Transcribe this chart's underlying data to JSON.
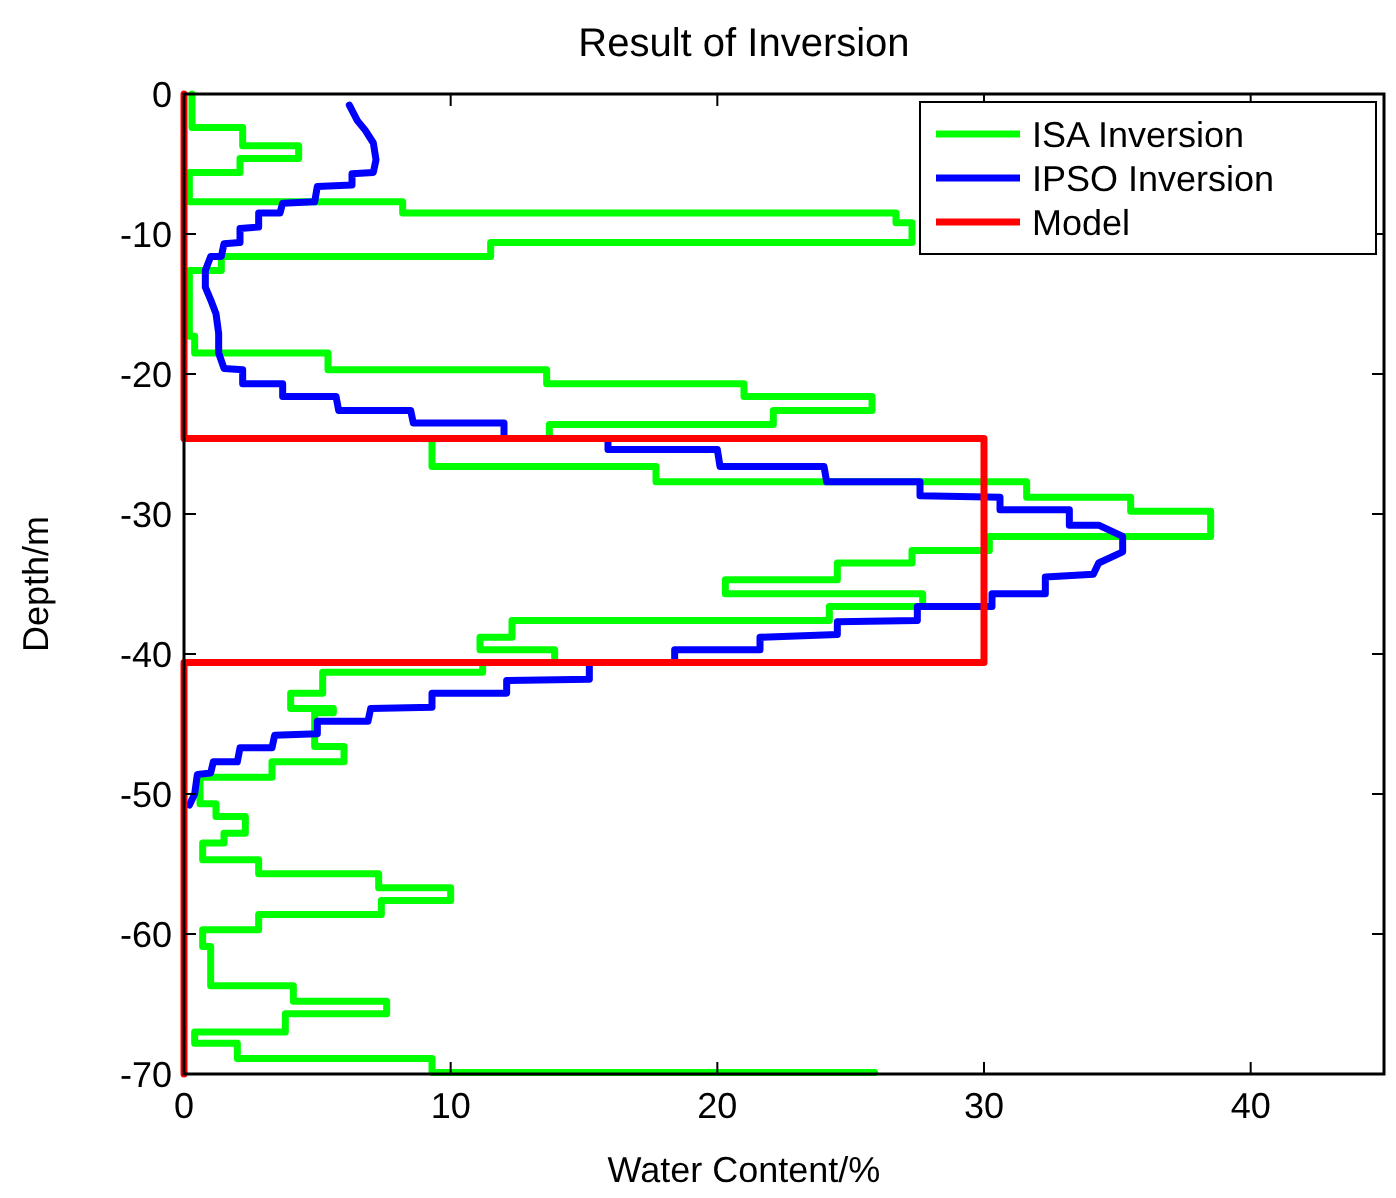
{
  "chart_data": {
    "type": "line",
    "title": "Result of Inversion",
    "xlabel": "Water Content/%",
    "ylabel": "Depth/m",
    "xlim": [
      0,
      45
    ],
    "xticks": [
      0,
      10,
      20,
      30,
      40
    ],
    "ylim": [
      -70,
      0
    ],
    "yticks": [
      0,
      -10,
      -20,
      -30,
      -40,
      -50,
      -60,
      -70
    ],
    "grid": false,
    "legend": "top right",
    "marker": "none",
    "line_style": "solid",
    "series": [
      {
        "name": "ISA Inversion",
        "color": "#00ff00",
        "x": [
          0.3,
          0.3,
          2.2,
          2.2,
          4.3,
          4.3,
          2.1,
          2.1,
          0.2,
          0.2,
          8.2,
          8.2,
          26.7,
          26.7,
          27.3,
          27.3,
          11.5,
          11.5,
          1.4,
          1.4,
          0.2,
          0.2,
          0.4,
          0.4,
          5.4,
          5.4,
          13.6,
          13.6,
          21.0,
          21.0,
          25.8,
          25.8,
          22.1,
          22.1,
          13.7,
          13.7,
          9.3,
          9.3,
          17.7,
          17.7,
          31.6,
          31.6,
          35.5,
          35.5,
          38.5,
          38.5,
          30.2,
          30.2,
          27.3,
          27.3,
          24.5,
          24.5,
          20.3,
          20.3,
          27.7,
          27.7,
          24.2,
          24.2,
          12.3,
          12.3,
          11.1,
          11.1,
          13.9,
          13.9,
          11.2,
          11.2,
          5.2,
          5.2,
          4.0,
          4.0,
          5.6,
          5.6,
          4.9,
          4.9,
          6.0,
          6.0,
          3.3,
          3.3,
          0.6,
          0.6,
          1.2,
          1.2,
          2.3,
          2.3,
          1.5,
          1.5,
          0.7,
          0.7,
          2.8,
          2.8,
          7.3,
          7.3,
          10.0,
          10.0,
          7.4,
          7.4,
          2.8,
          2.8,
          0.7,
          0.7,
          1.0,
          1.0,
          4.1,
          4.1,
          7.6,
          7.6,
          3.8,
          3.8,
          0.4,
          0.4,
          2.0,
          2.0,
          9.3,
          9.3,
          25.9
        ],
        "values": [
          0,
          -2.4,
          -2.4,
          -3.7,
          -3.7,
          -4.6,
          -4.6,
          -5.6,
          -5.6,
          -7.7,
          -7.7,
          -8.5,
          -8.5,
          -9.2,
          -9.2,
          -10.6,
          -10.6,
          -11.6,
          -11.6,
          -12.6,
          -12.6,
          -17.3,
          -17.3,
          -18.5,
          -18.5,
          -19.7,
          -19.7,
          -20.7,
          -20.7,
          -21.6,
          -21.6,
          -22.6,
          -22.6,
          -23.6,
          -23.6,
          -24.6,
          -24.6,
          -26.6,
          -26.6,
          -27.7,
          -27.7,
          -28.8,
          -28.8,
          -29.8,
          -29.8,
          -31.6,
          -31.6,
          -32.6,
          -32.6,
          -33.5,
          -33.5,
          -34.7,
          -34.7,
          -35.7,
          -35.7,
          -36.6,
          -36.6,
          -37.6,
          -37.6,
          -38.8,
          -38.8,
          -39.7,
          -39.7,
          -40.6,
          -40.6,
          -41.3,
          -41.3,
          -42.8,
          -42.8,
          -43.9,
          -43.9,
          -44.2,
          -44.2,
          -46.6,
          -46.6,
          -47.7,
          -47.7,
          -48.8,
          -48.8,
          -50.7,
          -50.7,
          -51.6,
          -51.6,
          -52.8,
          -52.8,
          -53.5,
          -53.5,
          -54.7,
          -54.7,
          -55.7,
          -55.7,
          -56.7,
          -56.7,
          -57.6,
          -57.6,
          -58.6,
          -58.6,
          -59.7,
          -59.7,
          -60.9,
          -60.9,
          -63.7,
          -63.7,
          -64.8,
          -64.8,
          -65.7,
          -65.7,
          -67.0,
          -67.0,
          -67.8,
          -67.8,
          -68.9,
          -68.9,
          -69.9,
          -69.9
        ]
      },
      {
        "name": "IPSO Inversion",
        "color": "#0000ff",
        "x": [
          6.2,
          6.5,
          6.8,
          7.1,
          7.2,
          7.1,
          6.3,
          6.3,
          5.0,
          4.9,
          3.7,
          3.6,
          2.8,
          2.8,
          2.1,
          2.1,
          1.5,
          1.4,
          1.0,
          0.8,
          0.8,
          1.0,
          1.2,
          1.3,
          1.3,
          1.5,
          2.2,
          2.2,
          3.7,
          3.7,
          5.7,
          5.8,
          8.5,
          8.6,
          12.0,
          12.0,
          15.9,
          15.9,
          20.0,
          20.1,
          24.0,
          24.1,
          27.6,
          27.6,
          30.6,
          30.6,
          33.2,
          33.2,
          34.3,
          35.2,
          35.2,
          34.3,
          34.1,
          32.3,
          32.3,
          30.3,
          30.3,
          27.5,
          27.5,
          24.5,
          24.5,
          21.6,
          21.6,
          18.4,
          18.4,
          15.2,
          15.2,
          12.1,
          12.1,
          9.3,
          9.3,
          7.0,
          6.9,
          5.0,
          5.0,
          3.4,
          3.3,
          2.1,
          2.0,
          1.1,
          1.0,
          0.5,
          0.4,
          0.2
        ],
        "values": [
          -0.8,
          -1.9,
          -2.6,
          -3.5,
          -4.7,
          -5.6,
          -5.7,
          -6.5,
          -6.6,
          -7.7,
          -7.8,
          -8.5,
          -8.5,
          -9.5,
          -9.6,
          -10.6,
          -10.7,
          -11.6,
          -11.6,
          -12.6,
          -13.8,
          -14.7,
          -15.7,
          -17.1,
          -18.5,
          -19.6,
          -19.7,
          -20.7,
          -20.7,
          -21.6,
          -21.6,
          -22.6,
          -22.6,
          -23.5,
          -23.5,
          -24.6,
          -24.6,
          -25.4,
          -25.4,
          -26.6,
          -26.6,
          -27.7,
          -27.7,
          -28.7,
          -28.8,
          -29.7,
          -29.7,
          -30.8,
          -30.8,
          -31.6,
          -32.7,
          -33.5,
          -34.3,
          -34.5,
          -35.7,
          -35.7,
          -36.6,
          -36.6,
          -37.6,
          -37.7,
          -38.6,
          -38.8,
          -39.7,
          -39.7,
          -40.6,
          -40.6,
          -41.8,
          -41.9,
          -42.8,
          -42.8,
          -43.8,
          -43.9,
          -44.8,
          -44.8,
          -45.7,
          -45.8,
          -46.7,
          -46.7,
          -47.7,
          -47.7,
          -48.5,
          -48.6,
          -50.0,
          -50.8
        ]
      },
      {
        "name": "Model",
        "color": "#ff0000",
        "x": [
          0,
          0,
          30,
          30,
          0,
          0
        ],
        "values": [
          0,
          -24.6,
          -24.6,
          -40.6,
          -40.6,
          -70
        ]
      }
    ]
  }
}
